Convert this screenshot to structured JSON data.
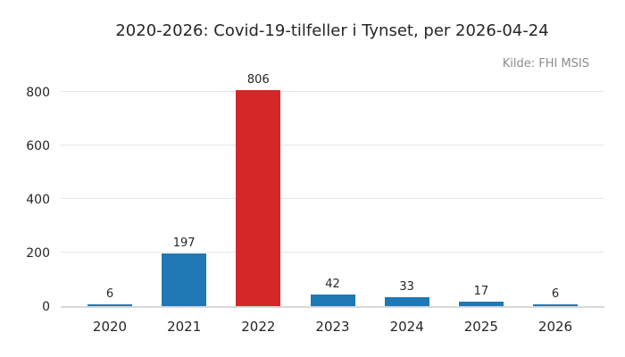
{
  "figure": {
    "title": "2020-2026: Covid-19-tilfeller i Tynset, per 2026-04-24",
    "source_note": "Kilde: FHI MSIS"
  },
  "chart_data": {
    "type": "bar",
    "title": "2020-2026: Covid-19-tilfeller i Tynset, per 2026-04-24",
    "annotation": "Kilde: FHI MSIS",
    "categories": [
      "2020",
      "2021",
      "2022",
      "2023",
      "2024",
      "2025",
      "2026"
    ],
    "values": [
      6,
      197,
      806,
      42,
      33,
      17,
      6
    ],
    "value_labels": [
      "6",
      "197",
      "806",
      "42",
      "33",
      "17",
      "6"
    ],
    "bar_colors": [
      "#1f77b4",
      "#1f77b4",
      "#d62728",
      "#1f77b4",
      "#1f77b4",
      "#1f77b4",
      "#1f77b4"
    ],
    "highlighted_category": "2022",
    "xlabel": "",
    "ylabel": "",
    "yticks": [
      0,
      200,
      400,
      600,
      800
    ],
    "ylim": [
      0,
      850
    ],
    "grid": "horizontal-only",
    "legend": "none",
    "colors": {
      "bar_default": "#1f77b4",
      "bar_highlight": "#d62728",
      "gridline": "#e7e7e7",
      "axis_line": "#d8d8d8",
      "text": "#262626",
      "source_text": "#8c8c8c",
      "background": "#ffffff"
    }
  }
}
